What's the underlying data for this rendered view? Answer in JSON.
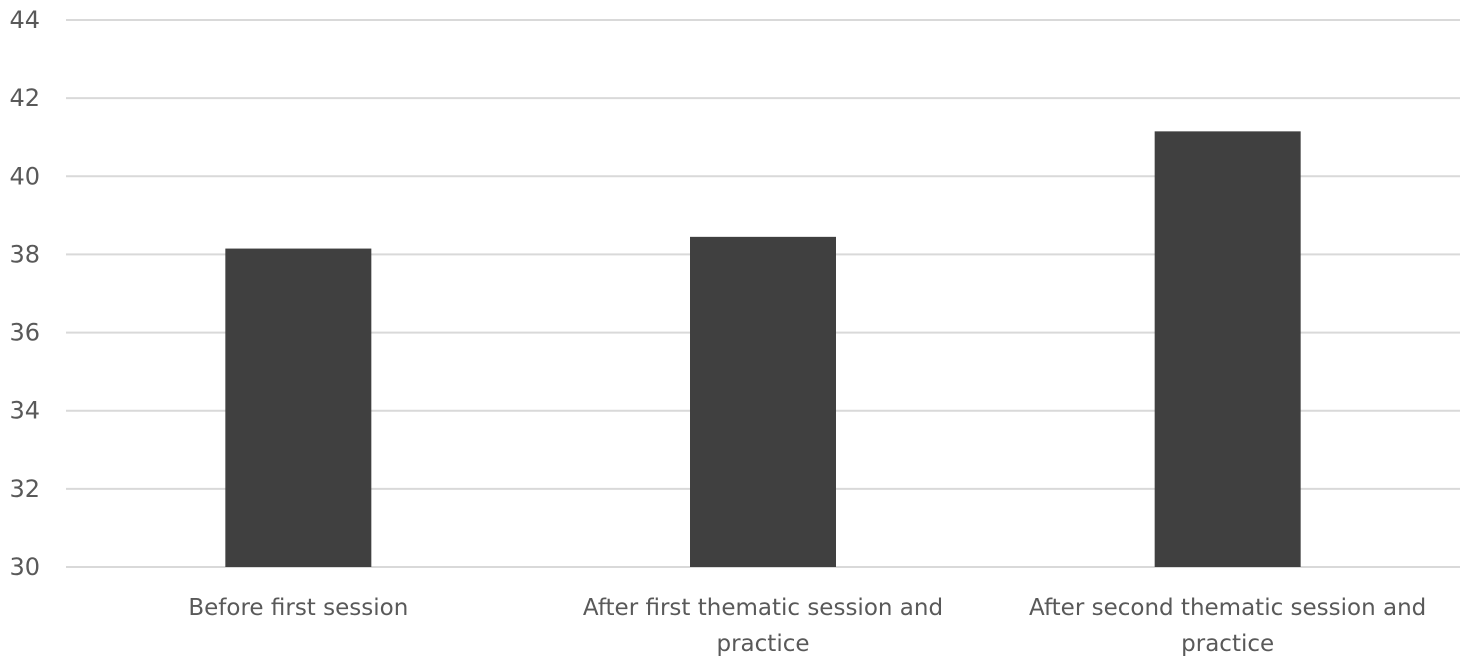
{
  "chart_data": {
    "type": "bar",
    "title": "",
    "xlabel": "",
    "ylabel": "",
    "categories": [
      "Before first session",
      "After first thematic session and practice",
      "After second thematic session and practice"
    ],
    "category_lines": [
      [
        "Before first session"
      ],
      [
        "After first thematic session and",
        "practice"
      ],
      [
        "After second thematic session and",
        "practice"
      ]
    ],
    "values": [
      38.15,
      38.45,
      41.15
    ],
    "ylim": [
      30,
      44
    ],
    "yticks": [
      "30",
      "32",
      "34",
      "36",
      "38",
      "40",
      "42",
      "44"
    ],
    "grid": true,
    "legend": "none",
    "colors": {
      "bar": "#404040",
      "grid": "#d9d9d9",
      "text": "#595959"
    }
  }
}
